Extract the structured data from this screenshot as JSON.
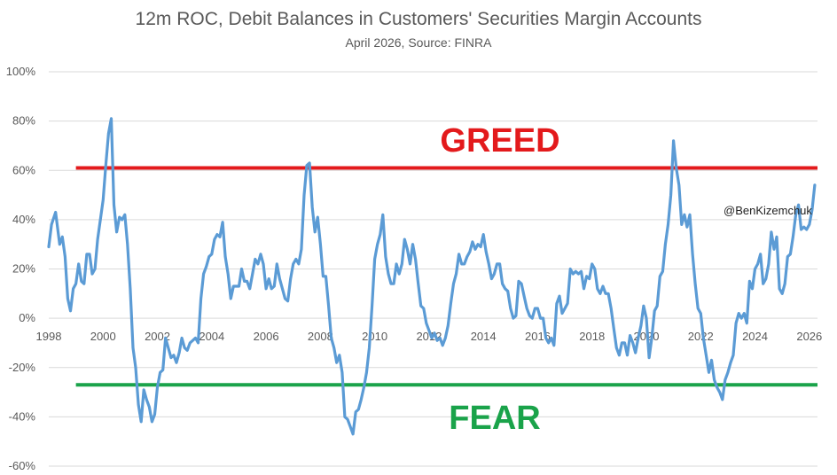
{
  "chart_data": {
    "type": "line",
    "title": "12m ROC, Debit Balances in Customers' Securities Margin Accounts",
    "subtitle": "April 2026, Source: FINRA",
    "ylim": [
      -60,
      100
    ],
    "xlim": [
      1998,
      2026.3
    ],
    "y_ticks": [
      "100%",
      "80%",
      "60%",
      "40%",
      "20%",
      "0%",
      "-20%",
      "-40%",
      "-60%"
    ],
    "y_tick_values": [
      100,
      80,
      60,
      40,
      20,
      0,
      -20,
      -40,
      -60
    ],
    "x_ticks": [
      "1998",
      "2000",
      "2002",
      "2004",
      "2006",
      "2008",
      "2010",
      "2012",
      "2014",
      "2016",
      "2018",
      "2020",
      "2022",
      "2024",
      "2026"
    ],
    "x_tick_values": [
      1998,
      2000,
      2002,
      2004,
      2006,
      2008,
      2010,
      2012,
      2014,
      2016,
      2018,
      2020,
      2022,
      2024,
      2026
    ],
    "grid": true,
    "series": [
      {
        "color": "#5b9bd5",
        "points": [
          [
            1998.0,
            29
          ],
          [
            1998.1,
            38
          ],
          [
            1998.25,
            43
          ],
          [
            1998.4,
            30
          ],
          [
            1998.5,
            33
          ],
          [
            1998.6,
            25
          ],
          [
            1998.7,
            8
          ],
          [
            1998.8,
            3
          ],
          [
            1998.9,
            12
          ],
          [
            1999.0,
            14
          ],
          [
            1999.1,
            22
          ],
          [
            1999.2,
            15
          ],
          [
            1999.3,
            14
          ],
          [
            1999.4,
            26
          ],
          [
            1999.5,
            26
          ],
          [
            1999.6,
            18
          ],
          [
            1999.7,
            20
          ],
          [
            1999.8,
            32
          ],
          [
            1999.9,
            40
          ],
          [
            2000.0,
            48
          ],
          [
            2000.1,
            62
          ],
          [
            2000.2,
            75
          ],
          [
            2000.3,
            81
          ],
          [
            2000.4,
            46
          ],
          [
            2000.5,
            35
          ],
          [
            2000.6,
            41
          ],
          [
            2000.7,
            40
          ],
          [
            2000.8,
            42
          ],
          [
            2000.9,
            30
          ],
          [
            2001.0,
            12
          ],
          [
            2001.1,
            -12
          ],
          [
            2001.2,
            -20
          ],
          [
            2001.3,
            -35
          ],
          [
            2001.4,
            -42
          ],
          [
            2001.5,
            -29
          ],
          [
            2001.6,
            -33
          ],
          [
            2001.7,
            -36
          ],
          [
            2001.8,
            -42
          ],
          [
            2001.9,
            -39
          ],
          [
            2002.0,
            -28
          ],
          [
            2002.1,
            -22
          ],
          [
            2002.2,
            -21
          ],
          [
            2002.3,
            -8
          ],
          [
            2002.4,
            -12
          ],
          [
            2002.5,
            -16
          ],
          [
            2002.6,
            -15
          ],
          [
            2002.7,
            -18
          ],
          [
            2002.8,
            -14
          ],
          [
            2002.9,
            -8
          ],
          [
            2003.0,
            -12
          ],
          [
            2003.1,
            -13
          ],
          [
            2003.2,
            -10
          ],
          [
            2003.3,
            -9
          ],
          [
            2003.4,
            -8
          ],
          [
            2003.5,
            -10
          ],
          [
            2003.6,
            8
          ],
          [
            2003.7,
            18
          ],
          [
            2003.8,
            21
          ],
          [
            2003.9,
            25
          ],
          [
            2004.0,
            26
          ],
          [
            2004.1,
            32
          ],
          [
            2004.2,
            34
          ],
          [
            2004.3,
            33
          ],
          [
            2004.4,
            39
          ],
          [
            2004.5,
            25
          ],
          [
            2004.6,
            18
          ],
          [
            2004.7,
            8
          ],
          [
            2004.8,
            13
          ],
          [
            2004.9,
            13
          ],
          [
            2005.0,
            13
          ],
          [
            2005.1,
            20
          ],
          [
            2005.2,
            15
          ],
          [
            2005.3,
            15
          ],
          [
            2005.4,
            12
          ],
          [
            2005.5,
            18
          ],
          [
            2005.6,
            24
          ],
          [
            2005.7,
            22
          ],
          [
            2005.8,
            26
          ],
          [
            2005.9,
            22
          ],
          [
            2006.0,
            12
          ],
          [
            2006.1,
            16
          ],
          [
            2006.2,
            12
          ],
          [
            2006.3,
            13
          ],
          [
            2006.4,
            22
          ],
          [
            2006.5,
            16
          ],
          [
            2006.6,
            12
          ],
          [
            2006.7,
            8
          ],
          [
            2006.8,
            7
          ],
          [
            2006.9,
            16
          ],
          [
            2007.0,
            22
          ],
          [
            2007.1,
            24
          ],
          [
            2007.2,
            22
          ],
          [
            2007.3,
            28
          ],
          [
            2007.4,
            50
          ],
          [
            2007.5,
            62
          ],
          [
            2007.6,
            63
          ],
          [
            2007.7,
            45
          ],
          [
            2007.8,
            35
          ],
          [
            2007.9,
            41
          ],
          [
            2008.0,
            30
          ],
          [
            2008.1,
            17
          ],
          [
            2008.2,
            17
          ],
          [
            2008.3,
            5
          ],
          [
            2008.4,
            -8
          ],
          [
            2008.5,
            -12
          ],
          [
            2008.6,
            -18
          ],
          [
            2008.7,
            -15
          ],
          [
            2008.8,
            -22
          ],
          [
            2008.9,
            -40
          ],
          [
            2009.0,
            -41
          ],
          [
            2009.1,
            -44
          ],
          [
            2009.2,
            -47
          ],
          [
            2009.3,
            -38
          ],
          [
            2009.4,
            -37
          ],
          [
            2009.5,
            -33
          ],
          [
            2009.6,
            -28
          ],
          [
            2009.7,
            -22
          ],
          [
            2009.8,
            -12
          ],
          [
            2009.9,
            5
          ],
          [
            2010.0,
            24
          ],
          [
            2010.1,
            30
          ],
          [
            2010.2,
            34
          ],
          [
            2010.3,
            42
          ],
          [
            2010.4,
            25
          ],
          [
            2010.5,
            18
          ],
          [
            2010.6,
            14
          ],
          [
            2010.7,
            14
          ],
          [
            2010.8,
            22
          ],
          [
            2010.9,
            18
          ],
          [
            2011.0,
            22
          ],
          [
            2011.1,
            32
          ],
          [
            2011.2,
            28
          ],
          [
            2011.3,
            22
          ],
          [
            2011.4,
            30
          ],
          [
            2011.5,
            24
          ],
          [
            2011.6,
            14
          ],
          [
            2011.7,
            5
          ],
          [
            2011.8,
            4
          ],
          [
            2011.9,
            -2
          ],
          [
            2012.0,
            -5
          ],
          [
            2012.1,
            -8
          ],
          [
            2012.2,
            -6
          ],
          [
            2012.3,
            -9
          ],
          [
            2012.4,
            -8
          ],
          [
            2012.5,
            -11
          ],
          [
            2012.6,
            -8
          ],
          [
            2012.7,
            -3
          ],
          [
            2012.8,
            6
          ],
          [
            2012.9,
            14
          ],
          [
            2013.0,
            18
          ],
          [
            2013.1,
            26
          ],
          [
            2013.2,
            22
          ],
          [
            2013.3,
            22
          ],
          [
            2013.4,
            25
          ],
          [
            2013.5,
            27
          ],
          [
            2013.6,
            31
          ],
          [
            2013.7,
            28
          ],
          [
            2013.8,
            30
          ],
          [
            2013.9,
            29
          ],
          [
            2014.0,
            34
          ],
          [
            2014.1,
            27
          ],
          [
            2014.2,
            22
          ],
          [
            2014.3,
            16
          ],
          [
            2014.4,
            18
          ],
          [
            2014.5,
            22
          ],
          [
            2014.6,
            22
          ],
          [
            2014.7,
            14
          ],
          [
            2014.8,
            12
          ],
          [
            2014.9,
            11
          ],
          [
            2015.0,
            4
          ],
          [
            2015.1,
            0
          ],
          [
            2015.2,
            1
          ],
          [
            2015.3,
            15
          ],
          [
            2015.4,
            14
          ],
          [
            2015.5,
            9
          ],
          [
            2015.6,
            4
          ],
          [
            2015.7,
            1
          ],
          [
            2015.8,
            0
          ],
          [
            2015.9,
            4
          ],
          [
            2016.0,
            4
          ],
          [
            2016.1,
            0
          ],
          [
            2016.2,
            0
          ],
          [
            2016.3,
            -8
          ],
          [
            2016.4,
            -10
          ],
          [
            2016.5,
            -8
          ],
          [
            2016.6,
            -11
          ],
          [
            2016.7,
            6
          ],
          [
            2016.8,
            9
          ],
          [
            2016.9,
            2
          ],
          [
            2017.0,
            4
          ],
          [
            2017.1,
            6
          ],
          [
            2017.2,
            20
          ],
          [
            2017.3,
            18
          ],
          [
            2017.4,
            19
          ],
          [
            2017.5,
            18
          ],
          [
            2017.6,
            19
          ],
          [
            2017.7,
            12
          ],
          [
            2017.8,
            17
          ],
          [
            2017.9,
            16
          ],
          [
            2018.0,
            22
          ],
          [
            2018.1,
            20
          ],
          [
            2018.2,
            12
          ],
          [
            2018.3,
            10
          ],
          [
            2018.4,
            13
          ],
          [
            2018.5,
            10
          ],
          [
            2018.6,
            10
          ],
          [
            2018.7,
            4
          ],
          [
            2018.8,
            -4
          ],
          [
            2018.9,
            -12
          ],
          [
            2019.0,
            -15
          ],
          [
            2019.1,
            -10
          ],
          [
            2019.2,
            -10
          ],
          [
            2019.3,
            -15
          ],
          [
            2019.4,
            -7
          ],
          [
            2019.5,
            -10
          ],
          [
            2019.6,
            -14
          ],
          [
            2019.7,
            -8
          ],
          [
            2019.8,
            -3
          ],
          [
            2019.9,
            5
          ],
          [
            2020.0,
            0
          ],
          [
            2020.1,
            -16
          ],
          [
            2020.2,
            -8
          ],
          [
            2020.3,
            3
          ],
          [
            2020.4,
            5
          ],
          [
            2020.5,
            17
          ],
          [
            2020.6,
            19
          ],
          [
            2020.7,
            30
          ],
          [
            2020.8,
            38
          ],
          [
            2020.9,
            50
          ],
          [
            2021.0,
            72
          ],
          [
            2021.1,
            61
          ],
          [
            2021.2,
            54
          ],
          [
            2021.3,
            38
          ],
          [
            2021.4,
            42
          ],
          [
            2021.5,
            37
          ],
          [
            2021.6,
            42
          ],
          [
            2021.7,
            26
          ],
          [
            2021.8,
            14
          ],
          [
            2021.9,
            4
          ],
          [
            2022.0,
            2
          ],
          [
            2022.1,
            -8
          ],
          [
            2022.2,
            -15
          ],
          [
            2022.3,
            -22
          ],
          [
            2022.4,
            -17
          ],
          [
            2022.5,
            -25
          ],
          [
            2022.6,
            -28
          ],
          [
            2022.7,
            -30
          ],
          [
            2022.8,
            -33
          ],
          [
            2022.9,
            -25
          ],
          [
            2023.0,
            -22
          ],
          [
            2023.1,
            -18
          ],
          [
            2023.2,
            -15
          ],
          [
            2023.3,
            -2
          ],
          [
            2023.4,
            2
          ],
          [
            2023.5,
            0
          ],
          [
            2023.6,
            2
          ],
          [
            2023.7,
            -2
          ],
          [
            2023.8,
            15
          ],
          [
            2023.9,
            12
          ],
          [
            2024.0,
            20
          ],
          [
            2024.1,
            22
          ],
          [
            2024.2,
            26
          ],
          [
            2024.3,
            14
          ],
          [
            2024.4,
            16
          ],
          [
            2024.5,
            22
          ],
          [
            2024.6,
            35
          ],
          [
            2024.7,
            28
          ],
          [
            2024.8,
            33
          ],
          [
            2024.9,
            12
          ],
          [
            2025.0,
            10
          ],
          [
            2025.1,
            14
          ],
          [
            2025.2,
            25
          ],
          [
            2025.3,
            26
          ],
          [
            2025.4,
            33
          ],
          [
            2025.5,
            42
          ],
          [
            2025.6,
            46
          ],
          [
            2025.7,
            36
          ],
          [
            2025.8,
            37
          ],
          [
            2025.9,
            36
          ],
          [
            2026.0,
            38
          ],
          [
            2026.1,
            44
          ],
          [
            2026.2,
            54
          ]
        ]
      }
    ],
    "reference_lines": [
      {
        "label": "GREED",
        "y": 61,
        "color": "#e31a1c",
        "x_from": 1999.0,
        "x_to": 2026.3
      },
      {
        "label": "FEAR",
        "y": -27,
        "color": "#1aa34a",
        "x_from": 1999.0,
        "x_to": 2026.3
      }
    ],
    "annotations": [
      "@BenKizemchuk"
    ]
  }
}
